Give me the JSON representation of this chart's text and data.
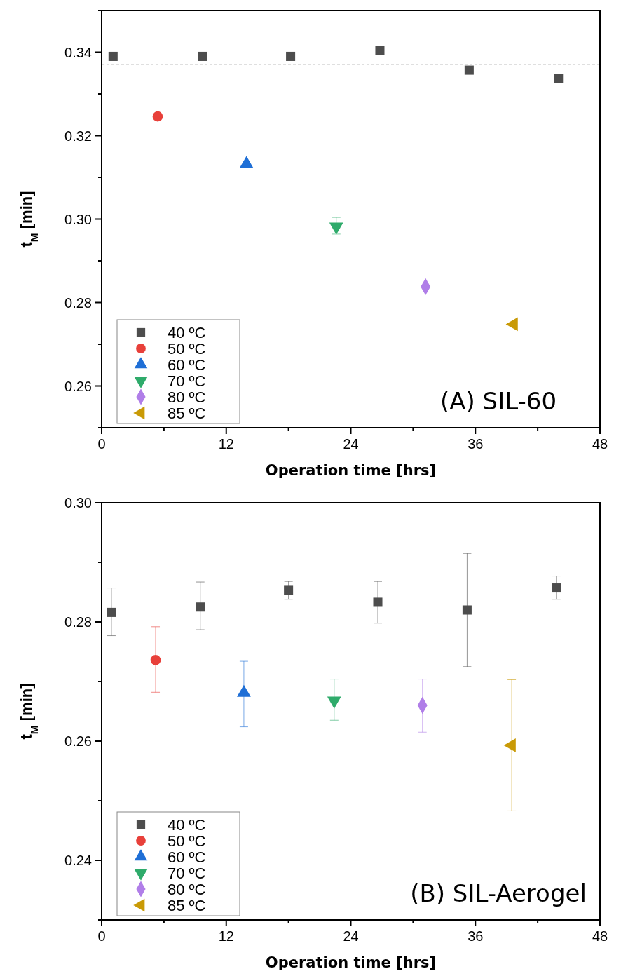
{
  "chart_data": [
    {
      "type": "scatter",
      "xlabel": "Operation time [hrs]",
      "ylabel": "t$_{M}$ [min]",
      "annotations": [
        "(A) SIL-60"
      ],
      "xlim": [
        0,
        48
      ],
      "ylim": [
        0.25,
        0.35
      ],
      "xticks": [
        0,
        {
          "value": 6,
          "label": null
        },
        12,
        {
          "value": 18,
          "label": null
        },
        24,
        {
          "value": 30,
          "label": null
        },
        36,
        {
          "value": 42,
          "label": null
        },
        48
      ],
      "yticks": [
        {
          "value": 0.25,
          "label": null
        },
        0.26,
        {
          "value": 0.27,
          "label": null
        },
        0.28,
        {
          "value": 0.29,
          "label": null
        },
        {
          "value": 0.3,
          "label": "0.30"
        },
        {
          "value": 0.31,
          "label": null
        },
        0.32,
        {
          "value": 0.33,
          "label": null
        },
        0.34,
        {
          "value": 0.35,
          "label": null
        }
      ],
      "legend": "bottom left",
      "grid": false,
      "ref_lines": [
        {
          "axis": "y",
          "value": 0.337,
          "line_style": "dashed"
        }
      ],
      "series": [
        {
          "name": "40 ºC",
          "color": "#4d4d4d",
          "marker": "square",
          "x": [
            1.1,
            9.7,
            18.2,
            26.8,
            35.4,
            44.0
          ],
          "values": [
            0.339,
            0.339,
            0.339,
            0.3404,
            0.3357,
            0.3337
          ]
        },
        {
          "name": "50 ºC",
          "color": "#e8403a",
          "marker": "circle",
          "x": [
            5.4
          ],
          "values": [
            0.3246
          ]
        },
        {
          "name": "60 ºC",
          "color": "#1f6fd6",
          "marker": "triangle",
          "x": [
            13.95
          ],
          "values": [
            0.3132
          ]
        },
        {
          "name": "70 ºC",
          "color": "#2fab6b",
          "marker": "triangle-down",
          "x": [
            22.6
          ],
          "values": [
            0.2982
          ],
          "errors": [
            [
              0.2964,
              0.3004
            ]
          ]
        },
        {
          "name": "80 ºC",
          "color": "#b07ee8",
          "marker": "diamond",
          "x": [
            31.2
          ],
          "values": [
            0.2838
          ]
        },
        {
          "name": "85 ºC",
          "color": "#c99a06",
          "marker": "triangle-left",
          "x": [
            39.7
          ],
          "values": [
            0.2748
          ]
        }
      ]
    },
    {
      "type": "scatter",
      "xlabel": "Operation time [hrs]",
      "ylabel": "t$_{M}$ [min]",
      "annotations": [
        "(B) SIL-Aerogel"
      ],
      "xlim": [
        0,
        48
      ],
      "ylim": [
        0.23,
        0.3
      ],
      "xticks": [
        0,
        {
          "value": 6,
          "label": null
        },
        12,
        {
          "value": 18,
          "label": null
        },
        24,
        {
          "value": 30,
          "label": null
        },
        36,
        {
          "value": 42,
          "label": null
        },
        48
      ],
      "yticks": [
        {
          "value": 0.23,
          "label": null
        },
        0.24,
        {
          "value": 0.25,
          "label": null
        },
        0.26,
        {
          "value": 0.27,
          "label": null
        },
        0.28,
        {
          "value": 0.29,
          "label": null
        },
        {
          "value": 0.3,
          "label": "0.30"
        }
      ],
      "legend": "bottom left",
      "grid": false,
      "ref_lines": [
        {
          "axis": "y",
          "value": 0.283,
          "line_style": "dashed"
        }
      ],
      "series": [
        {
          "name": "40 ºC",
          "color": "#4d4d4d",
          "marker": "square",
          "x": [
            0.94,
            9.5,
            18.0,
            26.6,
            35.2,
            43.8
          ],
          "values": [
            0.2816,
            0.2825,
            0.2853,
            0.2833,
            0.282,
            0.2857
          ],
          "errors": [
            [
              0.2777,
              0.2857
            ],
            [
              0.2787,
              0.2867
            ],
            [
              0.2838,
              0.2868
            ],
            [
              0.2798,
              0.2868
            ],
            [
              0.2725,
              0.2915
            ],
            [
              0.2838,
              0.2877
            ]
          ]
        },
        {
          "name": "50 ºC",
          "color": "#e8403a",
          "marker": "circle",
          "x": [
            5.2
          ],
          "values": [
            0.2736
          ],
          "errors": [
            [
              0.2682,
              0.2792
            ]
          ]
        },
        {
          "name": "60 ºC",
          "color": "#1f6fd6",
          "marker": "triangle",
          "x": [
            13.7
          ],
          "values": [
            0.2681
          ],
          "errors": [
            [
              0.2624,
              0.2734
            ]
          ]
        },
        {
          "name": "70 ºC",
          "color": "#2fab6b",
          "marker": "triangle-down",
          "x": [
            22.4
          ],
          "values": [
            0.2668
          ],
          "errors": [
            [
              0.2635,
              0.2704
            ]
          ]
        },
        {
          "name": "80 ºC",
          "color": "#b07ee8",
          "marker": "diamond",
          "x": [
            30.9
          ],
          "values": [
            0.266
          ],
          "errors": [
            [
              0.2615,
              0.2704
            ]
          ]
        },
        {
          "name": "85 ºC",
          "color": "#c99a06",
          "marker": "triangle-left",
          "x": [
            39.5
          ],
          "values": [
            0.2593
          ],
          "errors": [
            [
              0.2483,
              0.2703
            ]
          ]
        }
      ]
    }
  ]
}
